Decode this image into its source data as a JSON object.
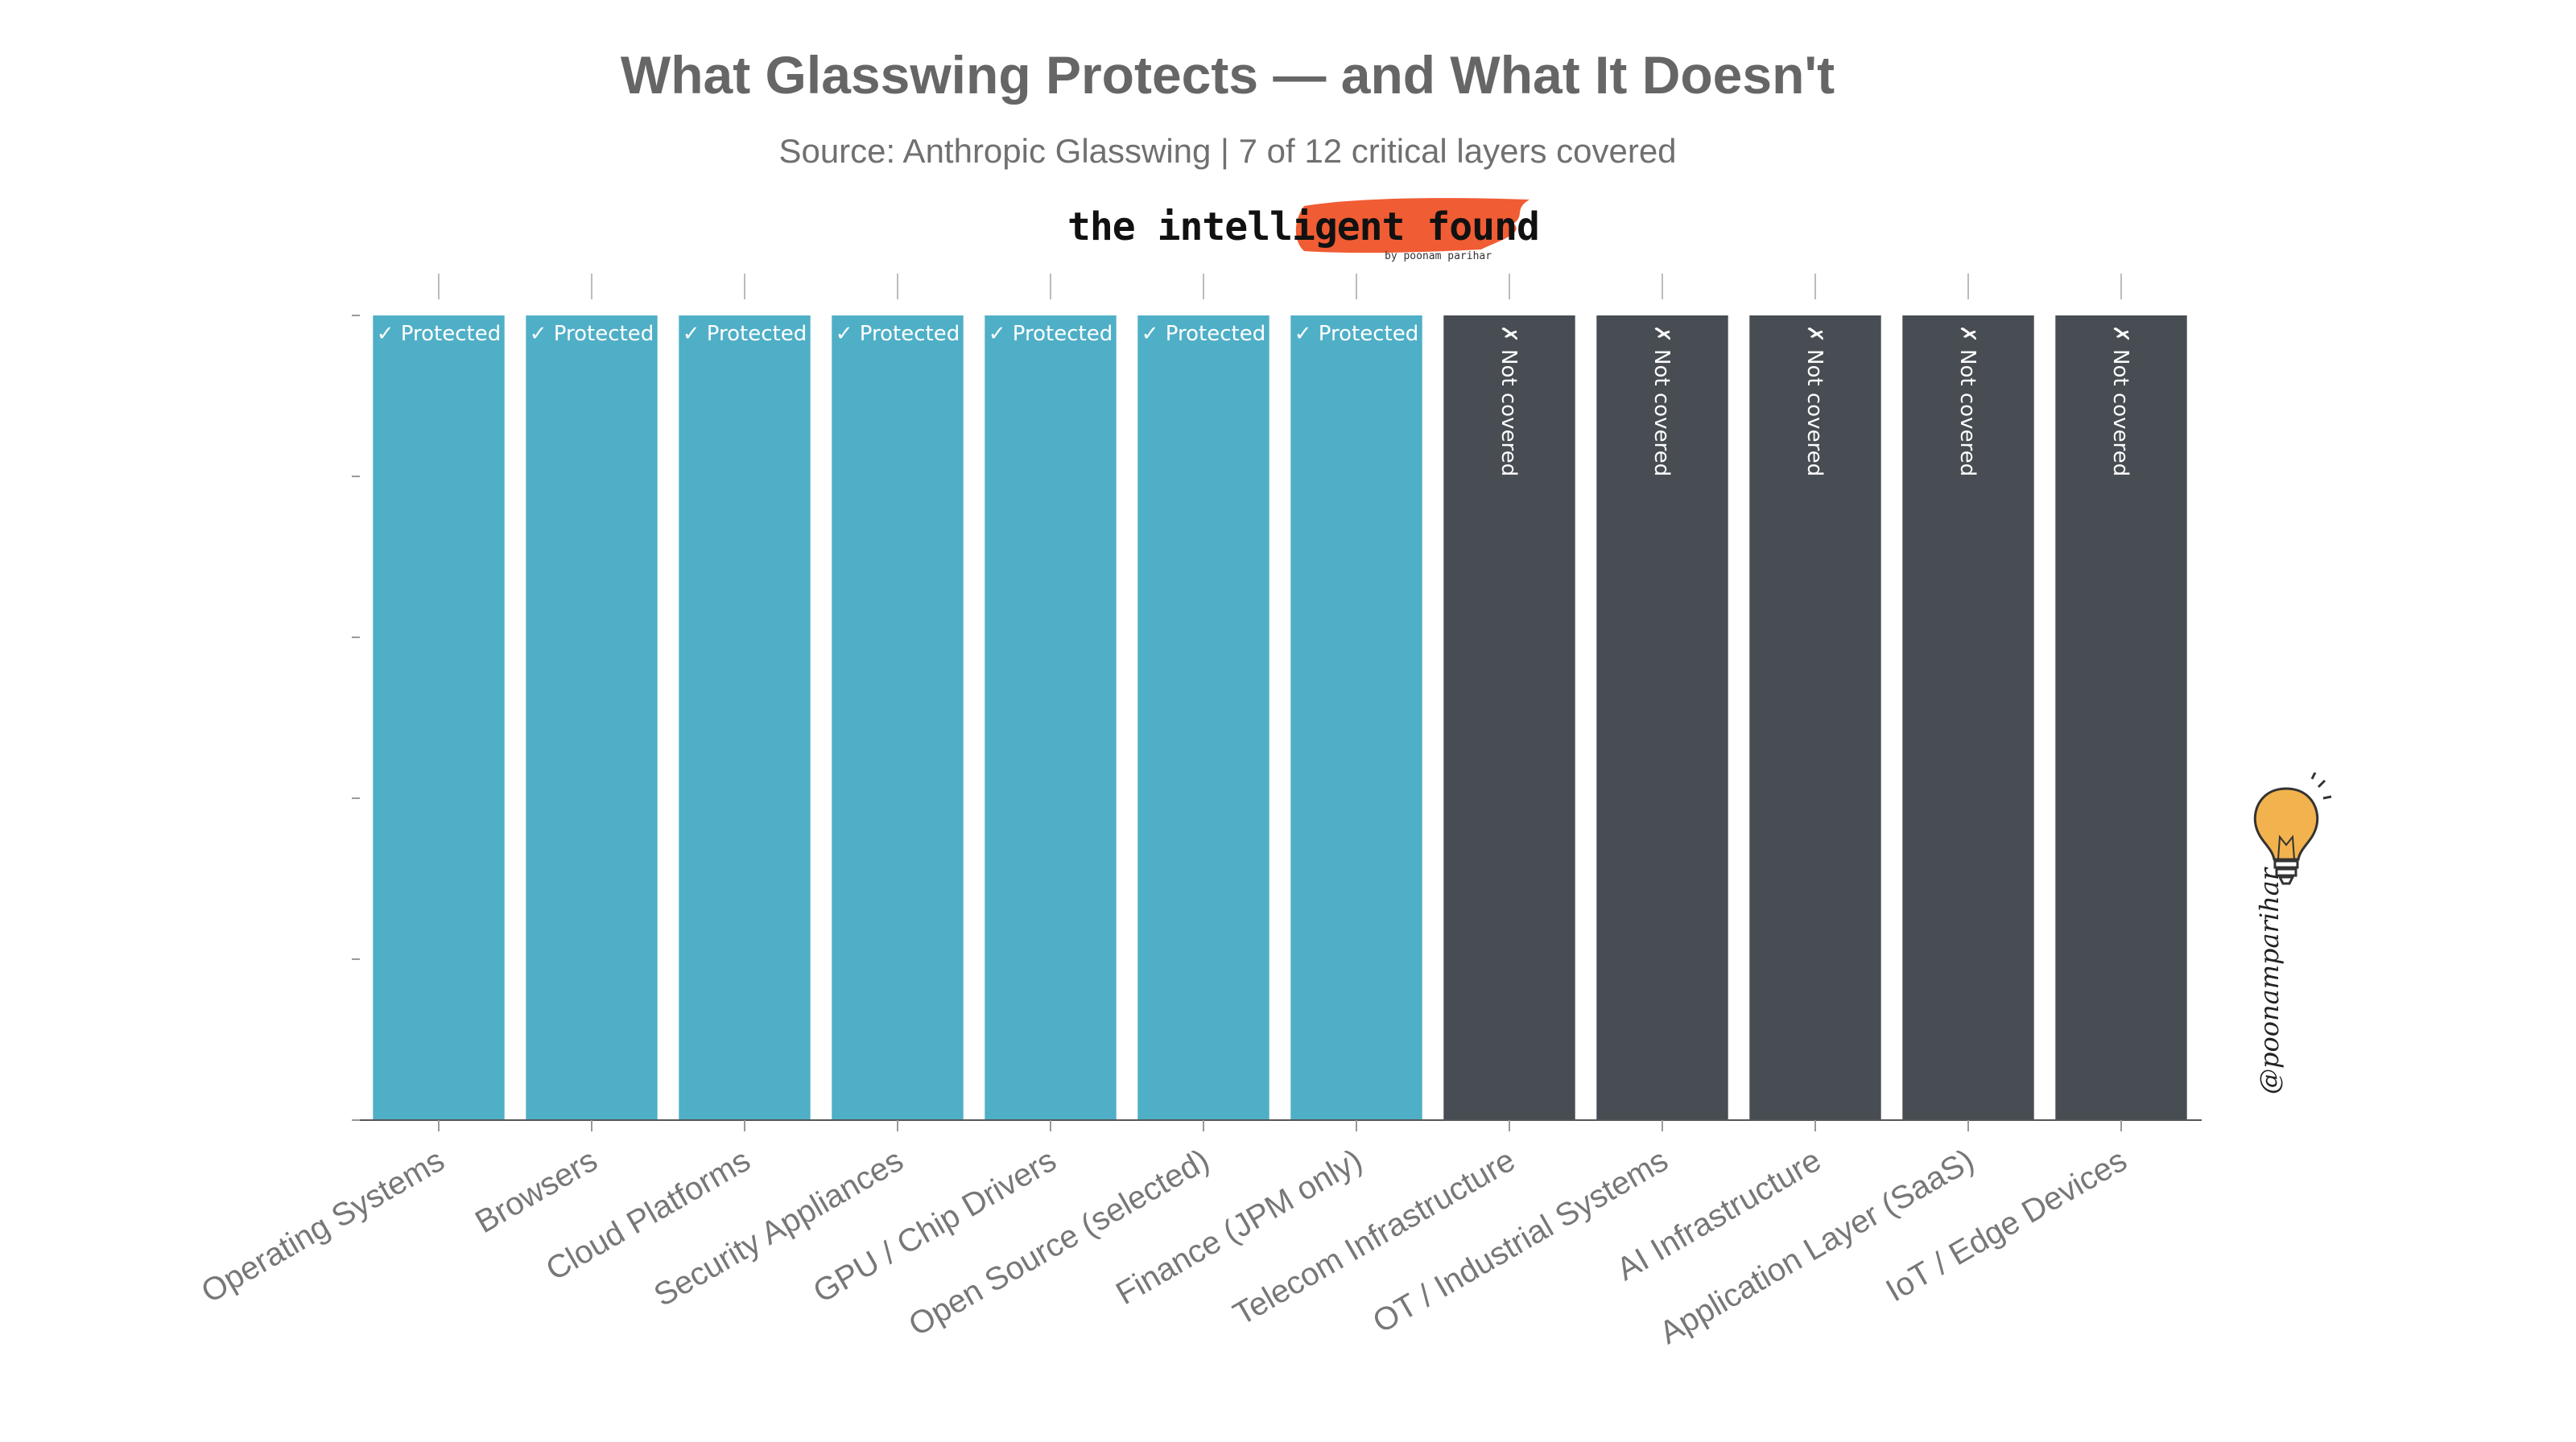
{
  "chart_data": {
    "type": "bar",
    "title": "What Glasswing Protects — and What It Doesn't",
    "subtitle": "Source: Anthropic Glasswing | 7 of 12 critical layers covered",
    "xlabel": "",
    "ylabel": "",
    "ylim": [
      0,
      1
    ],
    "grid": false,
    "categories": [
      "Operating Systems",
      "Browsers",
      "Cloud Platforms",
      "Security Appliances",
      "GPU / Chip Drivers",
      "Open Source (selected)",
      "Finance (JPM only)",
      "Telecom Infrastructure",
      "OT / Industrial Systems",
      "AI Infrastructure",
      "Application Layer (SaaS)",
      "IoT / Edge Devices"
    ],
    "values": [
      1,
      1,
      1,
      1,
      1,
      1,
      1,
      1,
      1,
      1,
      1,
      1
    ],
    "status": [
      "protected",
      "protected",
      "protected",
      "protected",
      "protected",
      "protected",
      "protected",
      "not_covered",
      "not_covered",
      "not_covered",
      "not_covered",
      "not_covered"
    ],
    "bar_labels": [
      "✓ Protected",
      "✓ Protected",
      "✓ Protected",
      "✓ Protected",
      "✓ Protected",
      "✓ Protected",
      "✓ Protected",
      "✗ Not covered",
      "✗ Not covered",
      "✗ Not covered",
      "✗ Not covered",
      "✗ Not covered"
    ],
    "colors": {
      "protected": "#4fafc6",
      "not_covered": "#474d52",
      "axis": "#555555"
    }
  },
  "branding": {
    "logo_text": "the intelligent founder",
    "logo_byline": "by poonam parihar",
    "handle": "@poonamparihar",
    "logo_brush_color": "#ee4a1e",
    "bulb_color": "#f2b24d"
  }
}
